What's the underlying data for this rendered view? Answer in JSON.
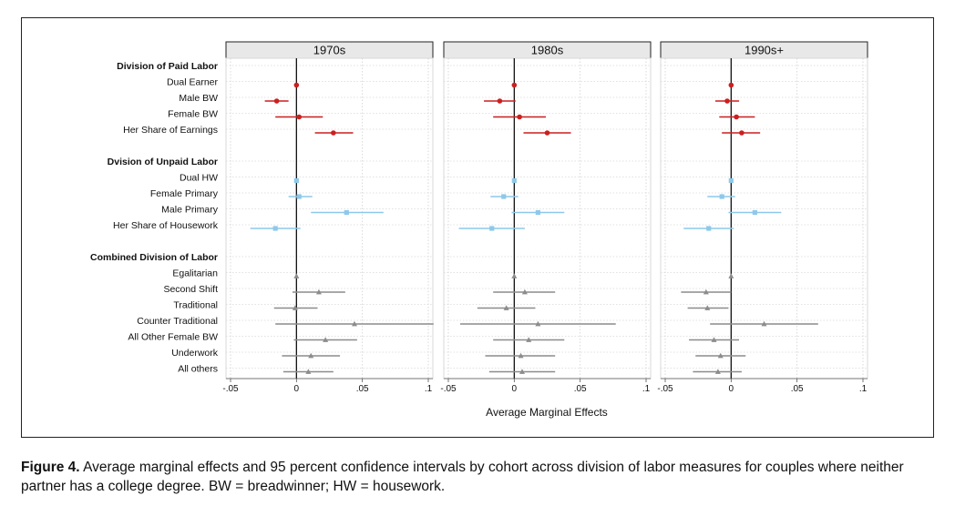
{
  "chart_data": {
    "type": "forest",
    "xlabel": "Average Marginal Effects",
    "xlim": [
      -0.05,
      0.1
    ],
    "xticks": [
      -0.05,
      0,
      0.05,
      0.1
    ],
    "xtick_labels": [
      "-.05",
      "0",
      ".05",
      ".1"
    ],
    "panels": [
      "1970s",
      "1980s",
      "1990s+"
    ],
    "groups": [
      {
        "name": "Division of Paid Labor",
        "color": "#cc1f1f",
        "marker": "circle",
        "items": [
          "Dual Earner",
          "Male BW",
          "Female BW",
          "Her Share of Earnings"
        ],
        "estimates": {
          "1970s": [
            [
              0,
              0,
              0
            ],
            [
              -0.015,
              -0.024,
              -0.006
            ],
            [
              0.002,
              -0.016,
              0.02
            ],
            [
              0.028,
              0.014,
              0.043
            ]
          ],
          "1980s": [
            [
              0,
              0,
              0
            ],
            [
              -0.011,
              -0.023,
              0.001
            ],
            [
              0.004,
              -0.016,
              0.024
            ],
            [
              0.025,
              0.007,
              0.043
            ]
          ],
          "1990s+": [
            [
              0,
              0,
              0
            ],
            [
              -0.003,
              -0.012,
              0.006
            ],
            [
              0.004,
              -0.009,
              0.018
            ],
            [
              0.008,
              -0.007,
              0.022
            ]
          ]
        }
      },
      {
        "name": "Dvision of Unpaid Labor",
        "color": "#8ec8ea",
        "marker": "square",
        "items": [
          "Dual HW",
          "Female Primary",
          "Male Primary",
          "Her Share of Housework"
        ],
        "estimates": {
          "1970s": [
            [
              0,
              0,
              0
            ],
            [
              0.002,
              -0.006,
              0.012
            ],
            [
              0.038,
              0.011,
              0.066
            ],
            [
              -0.016,
              -0.035,
              0.003
            ]
          ],
          "1980s": [
            [
              0,
              0,
              0
            ],
            [
              -0.008,
              -0.018,
              0.003
            ],
            [
              0.018,
              -0.002,
              0.038
            ],
            [
              -0.017,
              -0.042,
              0.008
            ]
          ],
          "1990s+": [
            [
              0,
              0,
              0
            ],
            [
              -0.007,
              -0.018,
              0.003
            ],
            [
              0.018,
              -0.002,
              0.038
            ],
            [
              -0.017,
              -0.036,
              0.002
            ]
          ]
        }
      },
      {
        "name": "Combined Division of Labor",
        "color": "#8c8c8c",
        "marker": "triangle",
        "items": [
          "Egalitarian",
          "Second Shift",
          "Traditional",
          "Counter Traditional",
          "All Other Female BW",
          "Underwork",
          "All others"
        ],
        "estimates": {
          "1970s": [
            [
              0,
              0,
              0
            ],
            [
              0.017,
              -0.003,
              0.037
            ],
            [
              -0.001,
              -0.017,
              0.016
            ],
            [
              0.044,
              -0.016,
              0.104
            ],
            [
              0.022,
              -0.002,
              0.046
            ],
            [
              0.011,
              -0.011,
              0.033
            ],
            [
              0.009,
              -0.01,
              0.028
            ]
          ],
          "1980s": [
            [
              0,
              0,
              0
            ],
            [
              0.008,
              -0.016,
              0.031
            ],
            [
              -0.006,
              -0.028,
              0.016
            ],
            [
              0.018,
              -0.041,
              0.077
            ],
            [
              0.011,
              -0.016,
              0.038
            ],
            [
              0.005,
              -0.022,
              0.031
            ],
            [
              0.006,
              -0.019,
              0.031
            ]
          ],
          "1990s+": [
            [
              0,
              0,
              0
            ],
            [
              -0.019,
              -0.038,
              0.0
            ],
            [
              -0.018,
              -0.033,
              -0.002
            ],
            [
              0.025,
              -0.016,
              0.066
            ],
            [
              -0.013,
              -0.032,
              0.006
            ],
            [
              -0.008,
              -0.027,
              0.011
            ],
            [
              -0.01,
              -0.029,
              0.008
            ]
          ]
        }
      }
    ]
  },
  "caption": {
    "label": "Figure 4.",
    "text": "Average marginal effects and 95 percent confidence intervals by cohort across division of labor measures for couples where neither partner has a college degree. BW = breadwinner; HW = housework."
  }
}
